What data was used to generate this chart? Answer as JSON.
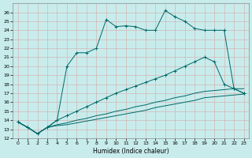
{
  "xlabel": "Humidex (Indice chaleur)",
  "background_color": "#c8ecec",
  "grid_color": "#d8a8a8",
  "line_color": "#006868",
  "ylim": [
    12,
    27
  ],
  "xlim": [
    -0.5,
    23.5
  ],
  "yticks": [
    12,
    13,
    14,
    15,
    16,
    17,
    18,
    19,
    20,
    21,
    22,
    23,
    24,
    25,
    26
  ],
  "xticks": [
    0,
    1,
    2,
    3,
    4,
    5,
    6,
    7,
    8,
    9,
    10,
    11,
    12,
    13,
    14,
    15,
    16,
    17,
    18,
    19,
    20,
    21,
    22,
    23
  ],
  "series": [
    {
      "x": [
        0,
        1,
        2,
        3,
        4,
        5,
        6,
        7,
        8,
        9,
        10,
        11,
        12,
        13,
        14,
        15,
        16,
        17,
        18,
        19,
        20,
        21,
        22,
        23
      ],
      "y": [
        13.8,
        13.2,
        12.5,
        13.2,
        14.0,
        20.0,
        21.5,
        21.5,
        22.0,
        25.2,
        24.4,
        24.5,
        24.4,
        24.0,
        24.0,
        26.2,
        25.5,
        25.0,
        24.2,
        24.0,
        24.0,
        24.0,
        17.5,
        17.0
      ],
      "marker": true
    },
    {
      "x": [
        0,
        1,
        2,
        3,
        4,
        5,
        6,
        7,
        8,
        9,
        10,
        11,
        12,
        13,
        14,
        15,
        16,
        17,
        18,
        19,
        20,
        21,
        22,
        23
      ],
      "y": [
        13.8,
        13.2,
        12.5,
        13.2,
        14.0,
        14.5,
        15.0,
        15.5,
        16.0,
        16.5,
        17.0,
        17.4,
        17.8,
        18.2,
        18.6,
        19.0,
        19.5,
        20.0,
        20.5,
        21.0,
        20.5,
        18.0,
        17.5,
        17.0
      ],
      "marker": true
    },
    {
      "x": [
        0,
        1,
        2,
        3,
        4,
        5,
        6,
        7,
        8,
        9,
        10,
        11,
        12,
        13,
        14,
        15,
        16,
        17,
        18,
        19,
        20,
        21,
        22,
        23
      ],
      "y": [
        13.8,
        13.2,
        12.5,
        13.2,
        13.5,
        13.7,
        14.0,
        14.2,
        14.5,
        14.7,
        15.0,
        15.2,
        15.5,
        15.7,
        16.0,
        16.2,
        16.5,
        16.7,
        17.0,
        17.2,
        17.3,
        17.4,
        17.5,
        17.5
      ],
      "marker": false
    },
    {
      "x": [
        0,
        1,
        2,
        3,
        4,
        5,
        6,
        7,
        8,
        9,
        10,
        11,
        12,
        13,
        14,
        15,
        16,
        17,
        18,
        19,
        20,
        21,
        22,
        23
      ],
      "y": [
        13.8,
        13.2,
        12.5,
        13.2,
        13.4,
        13.5,
        13.7,
        13.9,
        14.1,
        14.3,
        14.5,
        14.7,
        14.9,
        15.1,
        15.4,
        15.6,
        15.8,
        16.0,
        16.2,
        16.5,
        16.6,
        16.7,
        16.8,
        16.9
      ],
      "marker": false
    }
  ]
}
